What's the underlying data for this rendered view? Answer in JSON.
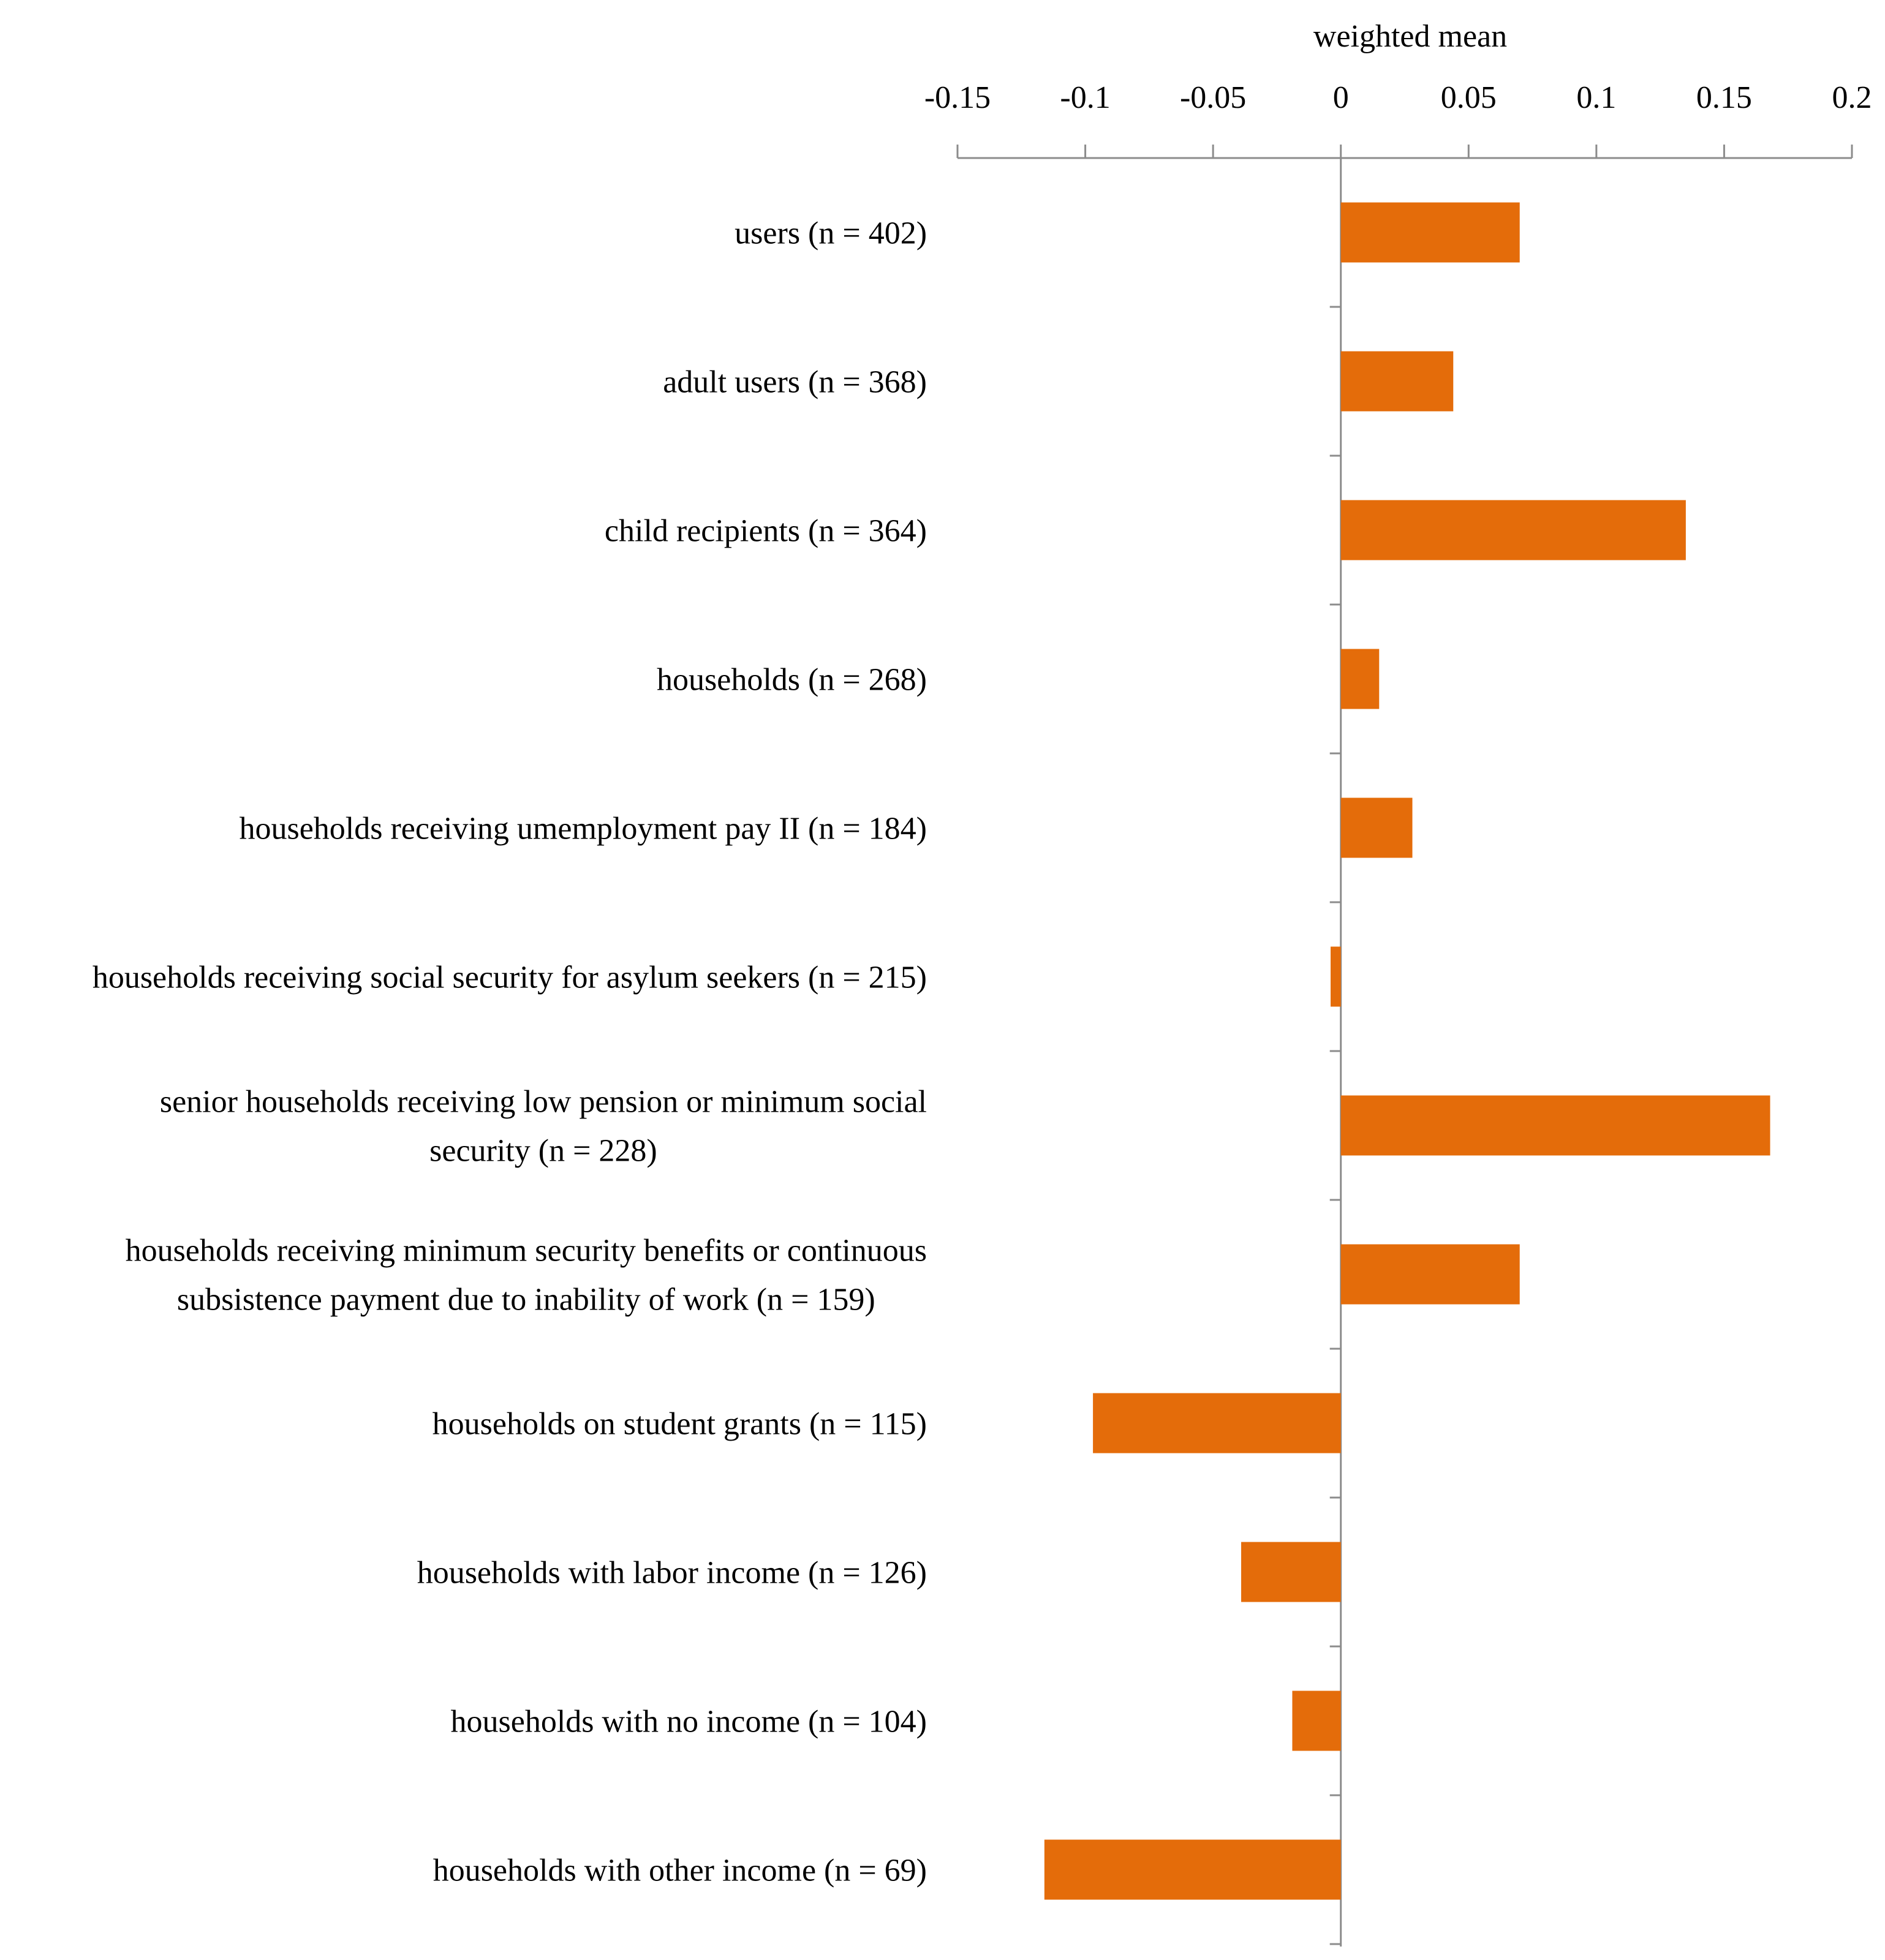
{
  "chart_data": {
    "type": "bar",
    "orientation": "horizontal",
    "title": "",
    "xlabel": "weighted mean",
    "ylabel": "",
    "xlim": [
      -0.15,
      0.2
    ],
    "xticks": [
      -0.15,
      -0.1,
      -0.05,
      0,
      0.05,
      0.1,
      0.15,
      0.2
    ],
    "xtick_labels": [
      "-0.15",
      "-0.1",
      "-0.05",
      "0",
      "0.05",
      "0.1",
      "0.15",
      "0.2"
    ],
    "x_axis_position": "top",
    "grid": false,
    "bar_color": "#E46C0A",
    "axis_color": "#8c8c8c",
    "categories": [
      [
        "users (n = 402)"
      ],
      [
        "adult users (n = 368)"
      ],
      [
        "child recipients (n = 364)"
      ],
      [
        "households (n = 268)"
      ],
      [
        "households receiving umemployment pay II (n = 184)"
      ],
      [
        "households receiving social security for asylum seekers (n = 215)"
      ],
      [
        "senior households receiving low pension or minimum social",
        "security (n = 228)"
      ],
      [
        "households receiving minimum security benefits or continuous",
        "subsistence payment due to inability of work (n = 159)"
      ],
      [
        "households on student grants (n = 115)"
      ],
      [
        "households with labor income (n = 126)"
      ],
      [
        "households with no income (n = 104)"
      ],
      [
        "households with other income (n = 69)"
      ]
    ],
    "values": [
      0.07,
      0.044,
      0.135,
      0.015,
      0.028,
      -0.004,
      0.168,
      0.07,
      -0.097,
      -0.039,
      -0.019,
      -0.116
    ]
  }
}
